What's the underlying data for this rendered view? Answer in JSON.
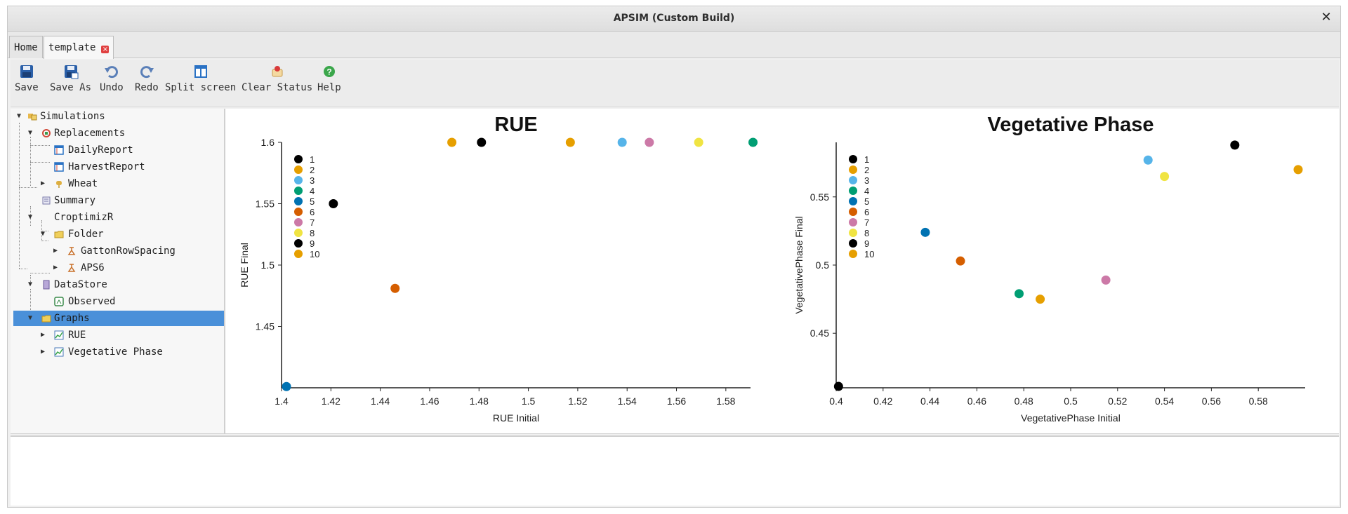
{
  "window": {
    "title": "APSIM (Custom Build)",
    "close_symbol": "✕"
  },
  "tabs": [
    {
      "label": "Home"
    },
    {
      "label": "template",
      "close_symbol": "×"
    }
  ],
  "toolbar": {
    "buttons": [
      {
        "label": "Save",
        "icon": "save-icon"
      },
      {
        "label": "Save As",
        "icon": "save-as-icon"
      },
      {
        "label": "Undo",
        "icon": "undo-icon"
      },
      {
        "label": "Redo",
        "icon": "redo-icon"
      },
      {
        "label": "Split screen",
        "icon": "split-screen-icon"
      },
      {
        "label": "Clear Status",
        "icon": "clear-status-icon"
      },
      {
        "label": "Help",
        "icon": "help-icon"
      }
    ]
  },
  "tree": {
    "nodes": [
      {
        "label": "Simulations",
        "icon": "simulations-icon",
        "expander": "expanded"
      },
      {
        "label": "Replacements",
        "icon": "replacements-icon",
        "expander": "expanded"
      },
      {
        "label": "DailyReport",
        "icon": "report-icon",
        "expander": "none"
      },
      {
        "label": "HarvestReport",
        "icon": "report-icon",
        "expander": "none"
      },
      {
        "label": "Wheat",
        "icon": "wheat-icon",
        "expander": "collapsed"
      },
      {
        "label": "Summary",
        "icon": "summary-icon",
        "expander": "none"
      },
      {
        "label": "CroptimizR",
        "icon": "",
        "expander": "expanded"
      },
      {
        "label": "Folder",
        "icon": "folder-icon",
        "expander": "expanded"
      },
      {
        "label": "GattonRowSpacing",
        "icon": "experiment-icon",
        "expander": "collapsed"
      },
      {
        "label": "APS6",
        "icon": "experiment-icon",
        "expander": "collapsed"
      },
      {
        "label": "DataStore",
        "icon": "datastore-icon",
        "expander": "expanded"
      },
      {
        "label": "Observed",
        "icon": "observed-icon",
        "expander": "none"
      },
      {
        "label": "Graphs",
        "icon": "folder-icon",
        "expander": "expanded",
        "selected": true
      },
      {
        "label": "RUE",
        "icon": "graph-icon",
        "expander": "collapsed"
      },
      {
        "label": "Vegetative Phase",
        "icon": "graph-icon",
        "expander": "collapsed"
      }
    ]
  },
  "colors": {
    "selection": "#4a90d9",
    "series": [
      "#000000",
      "#E69F00",
      "#56B4E9",
      "#009E73",
      "#0072B2",
      "#D55E00",
      "#CC79A7",
      "#F0E442",
      "#000000",
      "#E69F00"
    ]
  },
  "chart_data": [
    {
      "type": "scatter",
      "title": "RUE",
      "xlabel": "RUE Initial",
      "ylabel": "RUE Final",
      "xlim": [
        1.4,
        1.59
      ],
      "ylim": [
        1.4,
        1.6
      ],
      "xticks": [
        "1.4",
        "1.42",
        "1.44",
        "1.46",
        "1.48",
        "1.5",
        "1.52",
        "1.54",
        "1.56",
        "1.58"
      ],
      "yticks": [
        "1.45",
        "1.5",
        "1.55",
        "1.6"
      ],
      "legend": "top-left",
      "series": [
        {
          "name": "1",
          "points": [
            [
              1.481,
              1.6
            ]
          ]
        },
        {
          "name": "2",
          "points": [
            [
              1.469,
              1.6
            ],
            [
              1.517,
              1.6
            ]
          ]
        },
        {
          "name": "3",
          "points": [
            [
              1.538,
              1.6
            ]
          ]
        },
        {
          "name": "4",
          "points": [
            [
              1.591,
              1.6
            ]
          ]
        },
        {
          "name": "5",
          "points": [
            [
              1.402,
              1.401
            ]
          ]
        },
        {
          "name": "6",
          "points": [
            [
              1.446,
              1.481
            ]
          ]
        },
        {
          "name": "7",
          "points": [
            [
              1.549,
              1.6
            ]
          ]
        },
        {
          "name": "8",
          "points": [
            [
              1.569,
              1.6
            ]
          ]
        },
        {
          "name": "9",
          "points": [
            [
              1.421,
              1.55
            ]
          ]
        },
        {
          "name": "10",
          "points": []
        }
      ]
    },
    {
      "type": "scatter",
      "title": "Vegetative Phase",
      "xlabel": "VegetativePhase Initial",
      "ylabel": "VegetativePhase Final",
      "xlim": [
        0.4,
        0.6
      ],
      "ylim": [
        0.41,
        0.59
      ],
      "xticks": [
        "0.4",
        "0.42",
        "0.44",
        "0.46",
        "0.48",
        "0.5",
        "0.52",
        "0.54",
        "0.56",
        "0.58"
      ],
      "yticks": [
        "0.45",
        "0.5",
        "0.55"
      ],
      "legend": "top-left",
      "series": [
        {
          "name": "1",
          "points": [
            [
              0.57,
              0.588
            ]
          ]
        },
        {
          "name": "2",
          "points": [
            [
              0.597,
              0.57
            ],
            [
              0.487,
              0.475
            ]
          ]
        },
        {
          "name": "3",
          "points": [
            [
              0.533,
              0.577
            ]
          ]
        },
        {
          "name": "4",
          "points": [
            [
              0.478,
              0.479
            ]
          ]
        },
        {
          "name": "5",
          "points": [
            [
              0.438,
              0.524
            ]
          ]
        },
        {
          "name": "6",
          "points": [
            [
              0.453,
              0.503
            ]
          ]
        },
        {
          "name": "7",
          "points": [
            [
              0.515,
              0.489
            ]
          ]
        },
        {
          "name": "8",
          "points": [
            [
              0.54,
              0.565
            ]
          ]
        },
        {
          "name": "9",
          "points": [
            [
              0.401,
              0.411
            ]
          ]
        },
        {
          "name": "10",
          "points": []
        }
      ]
    }
  ]
}
